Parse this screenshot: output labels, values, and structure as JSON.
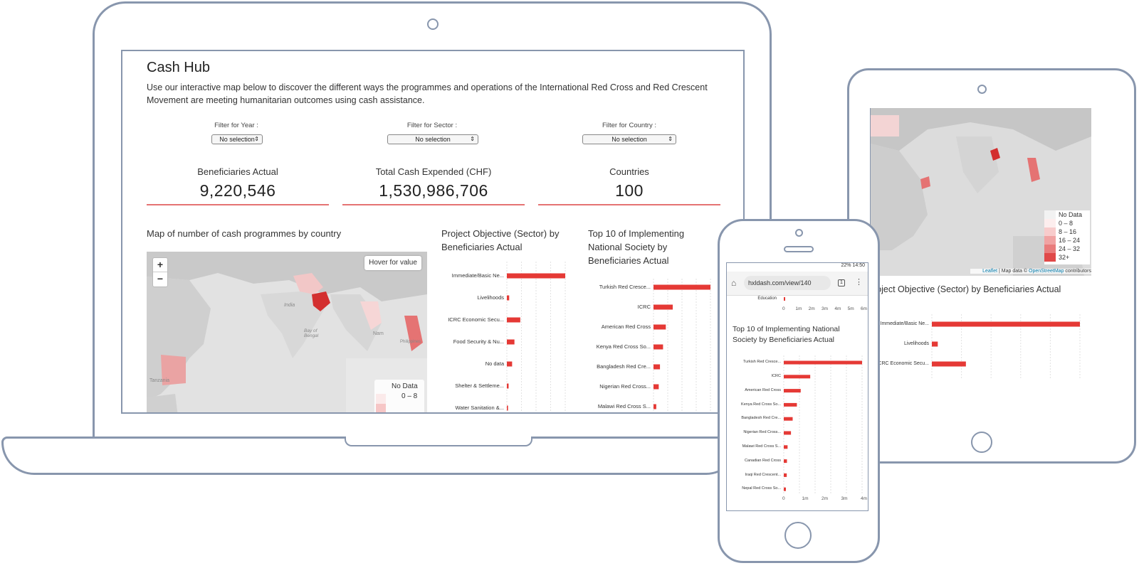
{
  "app": {
    "title": "Cash Hub",
    "intro": "Use our interactive map below to discover the different ways the programmes and operations of the International Red Cross and Red Crescent Movement are meeting humanitarian outcomes using cash assistance."
  },
  "filters": [
    {
      "label": "Filter for Year :",
      "value": "No selection"
    },
    {
      "label": "Filter for Sector :",
      "value": "No selection"
    },
    {
      "label": "Filter for Country :",
      "value": "No selection"
    }
  ],
  "kpis": [
    {
      "label": "Beneficiaries Actual",
      "value": "9,220,546"
    },
    {
      "label": "Total Cash Expended (CHF)",
      "value": "1,530,986,706"
    },
    {
      "label": "Countries",
      "value": "100"
    }
  ],
  "map": {
    "title": "Map of number of cash programmes by country",
    "zoom_in": "+",
    "zoom_out": "−",
    "hover": "Hover for value",
    "place_labels": [
      "India",
      "Bay of Bengal",
      "Nam",
      "Philippines",
      "Tanzania"
    ],
    "legend": [
      "No Data",
      "0 – 8",
      "8 – 16",
      "16 – 24",
      "24 – 32",
      "32+"
    ]
  },
  "sector_chart": {
    "title": "Project Objective (Sector) by Beneficiaries Actual",
    "categories": [
      "Immediate/Basic Ne...",
      "Livelihoods",
      "ICRC Economic Secu...",
      "Food Security & Nu...",
      "No data",
      "Shelter & Settleme...",
      "Water Sanitation &..."
    ]
  },
  "society_chart": {
    "title": "Top 10 of Implementing National Society by Beneficiaries Actual",
    "categories": [
      "Turkish Red Cresce...",
      "ICRC",
      "American Red Cross",
      "Kenya Red Cross So...",
      "Bangladesh Red Cre...",
      "Nigerian Red Cross...",
      "Malawi Red Cross S...",
      "Canadian Red Cross",
      "Iraqi Red Crescent...",
      "Nepal Red Cross So..."
    ]
  },
  "phone": {
    "status": "22% 14:50",
    "url": "hxldash.com/view/140",
    "tab_count": "1",
    "top_axis_label": "Education",
    "top_axis_ticks": [
      "0",
      "1m",
      "2m",
      "3m",
      "4m",
      "5m",
      "6m"
    ],
    "chart_title": "Top 10 of Implementing National Society by Beneficiaries Actual",
    "bottom_axis_ticks": [
      "0",
      "1m",
      "2m",
      "3m",
      "4m"
    ]
  },
  "tablet": {
    "legend": [
      "No Data",
      "0 – 8",
      "8 – 16",
      "16 – 24",
      "24 – 32",
      "32+"
    ],
    "attribution_link1": "Leaflet",
    "attribution_text": " | Map data © ",
    "attribution_link2": "OpenStreetMap",
    "attribution_tail": " contributors",
    "chart_title": "roject Objective (Sector) by Beneficiaries Actual",
    "categories": [
      "Immediate/Basic Ne...",
      "Livelihoods",
      "ICRC Economic Secu..."
    ]
  },
  "chart_data": [
    {
      "type": "bar",
      "title": "Project Objective (Sector) by Beneficiaries Actual",
      "categories": [
        "Immediate/Basic Ne...",
        "Livelihoods",
        "ICRC Economic Secu...",
        "Food Security & Nu...",
        "No data",
        "Shelter & Settleme...",
        "Water Sanitation &..."
      ],
      "values": [
        100,
        4,
        23,
        13,
        9,
        3,
        2
      ]
    },
    {
      "type": "bar",
      "title": "Top 10 of Implementing National Society by Beneficiaries Actual",
      "categories": [
        "Turkish Red Cresce...",
        "ICRC",
        "American Red Cross",
        "Kenya Red Cross So...",
        "Bangladesh Red Cre...",
        "Nigerian Red Cross...",
        "Malawi Red Cross S...",
        "Canadian Red Cross",
        "Iraqi Red Crescent...",
        "Nepal Red Cross So..."
      ],
      "values": [
        3700000,
        1250000,
        800000,
        620000,
        420000,
        340000,
        180000,
        150000,
        140000,
        100000
      ]
    }
  ],
  "colors": {
    "accent": "#e53935",
    "frame": "#8896ad",
    "map_land": "#d4d4d4"
  }
}
